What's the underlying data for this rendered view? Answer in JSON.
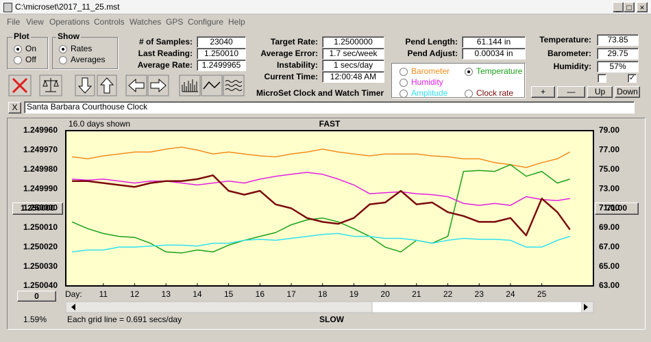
{
  "window": {
    "title": "C:\\microset\\2017_11_25.mst"
  },
  "menu": [
    "File",
    "View",
    "Operations",
    "Controls",
    "Watches",
    "GPS",
    "Configure",
    "Help"
  ],
  "plot_group": {
    "title": "Plot",
    "options": [
      "On",
      "Off"
    ]
  },
  "show_group": {
    "title": "Show",
    "options": [
      "Rates",
      "Averages"
    ]
  },
  "readings": [
    {
      "label": "# of Samples:",
      "value": "23040"
    },
    {
      "label": "Last Reading:",
      "value": "1.250010"
    },
    {
      "label": "Average Rate:",
      "value": "1.2499965"
    }
  ],
  "timing": [
    {
      "label": "Target Rate:",
      "value": "1.2500000"
    },
    {
      "label": "Average Error:",
      "value": "1.7 sec/week"
    },
    {
      "label": "Instability:",
      "value": "1 secs/day"
    },
    {
      "label": "Current Time:",
      "value": "12:00:48 AM"
    }
  ],
  "app_title": "MicroSet Clock and Watch Timer",
  "pendulum": [
    {
      "label": "Pend Length:",
      "value": "61.144 in"
    },
    {
      "label": "Pend Adjust:",
      "value": "0.00034 in"
    }
  ],
  "environment": [
    {
      "label": "Temperature:",
      "value": "73.85"
    },
    {
      "label": "Barometer:",
      "value": "29.75"
    },
    {
      "label": "Humidity:",
      "value": "57%"
    }
  ],
  "buttons": [
    "+",
    "—",
    "Up",
    "Down"
  ],
  "clear_button": "X",
  "clock_name": "Santa Barbara Courthouse Clock",
  "chart_data": {
    "type": "line",
    "days_shown": "16.0 days shown",
    "top_label": "FAST",
    "bottom_label": "SLOW",
    "grid_note": "Each grid line = 0.691 secs/day",
    "x_label": "Day:",
    "center_button": "1.250000",
    "y2_button": "71.00",
    "offset_button": "0",
    "percent": "1.59%",
    "grid": false,
    "x": [
      10,
      10.5,
      11,
      11.5,
      12,
      12.5,
      13,
      13.5,
      14,
      14.5,
      15,
      15.5,
      16,
      16.5,
      17,
      17.5,
      18,
      18.5,
      19,
      19.5,
      20,
      20.5,
      21,
      21.5,
      22,
      22.5,
      23,
      23.5,
      24,
      24.5,
      25,
      25.5,
      25.9
    ],
    "xlim": [
      9.8,
      26.65
    ],
    "xticks": [
      11,
      12,
      13,
      14,
      15,
      16,
      17,
      18,
      19,
      20,
      21,
      22,
      23,
      24,
      25
    ],
    "ylim": [
      1.25004,
      1.24996
    ],
    "yticks": [
      {
        "value": 1.24996,
        "label": "1.249960"
      },
      {
        "value": 1.24997,
        "label": "1.249970"
      },
      {
        "value": 1.24998,
        "label": "1.249980"
      },
      {
        "value": 1.24999,
        "label": "1.249990"
      },
      {
        "value": 1.25,
        "label": "1.250000"
      },
      {
        "value": 1.25001,
        "label": "1.250010"
      },
      {
        "value": 1.25002,
        "label": "1.250020"
      },
      {
        "value": 1.25003,
        "label": "1.250030"
      },
      {
        "value": 1.25004,
        "label": "1.250040"
      }
    ],
    "y2lim": [
      63,
      79
    ],
    "y2ticks": [
      {
        "value": 79,
        "label": "79.00"
      },
      {
        "value": 77,
        "label": "77.00"
      },
      {
        "value": 75,
        "label": "75.00"
      },
      {
        "value": 73,
        "label": "73.00"
      },
      {
        "value": 71,
        "label": "71.00"
      },
      {
        "value": 69,
        "label": "69.00"
      },
      {
        "value": 67,
        "label": "67.00"
      },
      {
        "value": 65,
        "label": "65.00"
      },
      {
        "value": 63,
        "label": "63.00"
      }
    ],
    "series": [
      {
        "name": "Barometer",
        "color": "#f08c1e",
        "axis": "y2",
        "values": [
          76.3,
          76.1,
          76.4,
          76.6,
          76.8,
          76.8,
          77.1,
          77.3,
          77.0,
          76.6,
          76.8,
          76.6,
          76.4,
          76.3,
          76.6,
          76.8,
          77.1,
          76.8,
          76.6,
          76.4,
          76.6,
          76.6,
          76.6,
          76.4,
          76.3,
          76.1,
          76.1,
          75.7,
          75.5,
          75.2,
          75.7,
          76.1,
          76.8
        ]
      },
      {
        "name": "Temperature",
        "color": "#1aa01a",
        "axis": "y2",
        "values": [
          69.6,
          68.9,
          68.4,
          68.1,
          68.0,
          67.4,
          66.5,
          66.4,
          66.7,
          66.5,
          67.2,
          67.7,
          68.1,
          68.5,
          69.3,
          69.8,
          70.0,
          69.6,
          68.9,
          68.1,
          67.0,
          66.5,
          67.7,
          67.4,
          68.1,
          74.8,
          74.9,
          74.8,
          75.5,
          74.3,
          74.8,
          73.6,
          74.0
        ]
      },
      {
        "name": "Humidity",
        "color": "#e020e0",
        "axis": "y2",
        "values": [
          74.0,
          73.9,
          74.0,
          73.8,
          73.6,
          73.8,
          73.8,
          73.6,
          73.4,
          73.6,
          73.8,
          73.6,
          74.0,
          74.3,
          74.5,
          74.7,
          74.5,
          74.0,
          73.4,
          72.5,
          72.6,
          72.7,
          72.5,
          72.4,
          72.2,
          71.5,
          71.3,
          71.5,
          71.3,
          72.2,
          71.9,
          71.8,
          72.0
        ]
      },
      {
        "name": "Amplitude",
        "color": "#30e0f0",
        "axis": "y2",
        "values": [
          66.5,
          66.7,
          66.7,
          67.0,
          67.0,
          67.1,
          67.2,
          67.2,
          67.1,
          67.4,
          67.4,
          67.7,
          67.8,
          67.7,
          67.9,
          68.1,
          68.3,
          68.4,
          68.1,
          68.1,
          67.9,
          67.9,
          67.7,
          67.4,
          67.7,
          67.9,
          67.8,
          67.8,
          67.7,
          67.0,
          67.0,
          67.7,
          68.1
        ]
      },
      {
        "name": "Clock rate",
        "color": "#7a0a0a",
        "axis": "y",
        "values": [
          1.249986,
          1.249986,
          1.249987,
          1.249988,
          1.249989,
          1.249987,
          1.249986,
          1.249986,
          1.249985,
          1.249983,
          1.249991,
          1.249993,
          1.249991,
          1.249998,
          1.25,
          1.250005,
          1.250007,
          1.250008,
          1.250005,
          1.249998,
          1.249997,
          1.249991,
          1.249998,
          1.249997,
          1.250002,
          1.250004,
          1.250007,
          1.250007,
          1.250005,
          1.250014,
          1.249995,
          1.250002,
          1.250011
        ]
      }
    ]
  }
}
